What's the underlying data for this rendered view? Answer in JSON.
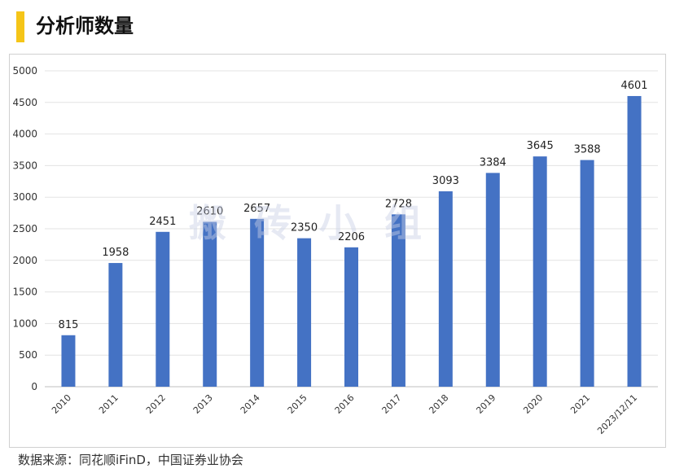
{
  "header": {
    "title": "分析师数量",
    "accent_color": "#f5c518"
  },
  "watermark": "搬砖小组",
  "footer": {
    "source": "数据来源：同花顺iFinD，中国证券业协会"
  },
  "chart_data": {
    "type": "bar",
    "categories": [
      "2010",
      "2011",
      "2012",
      "2013",
      "2014",
      "2015",
      "2016",
      "2017",
      "2018",
      "2019",
      "2020",
      "2021",
      "2023/12/11"
    ],
    "series": [
      {
        "values": [
          815,
          1958,
          2451,
          2610,
          2657,
          2350,
          2206,
          2728,
          3093,
          3384,
          3645,
          3588,
          4601
        ],
        "color": "#4472c4"
      }
    ],
    "ylim": [
      0,
      5000
    ],
    "yticks": [
      0,
      500,
      1000,
      1500,
      2000,
      2500,
      3000,
      3500,
      4000,
      4500,
      5000
    ],
    "grid": true,
    "data_labels": true,
    "legend": "none",
    "title": "",
    "xlabel": "",
    "ylabel": ""
  }
}
